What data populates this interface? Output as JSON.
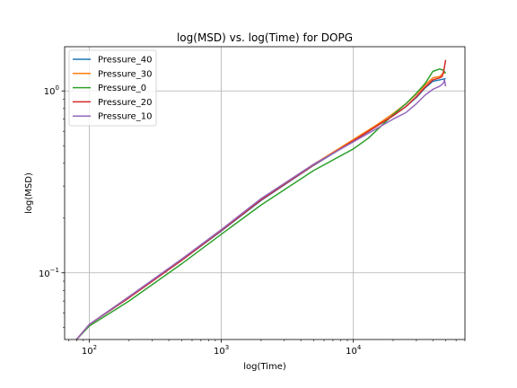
{
  "chart_data": {
    "type": "line",
    "title": "log(MSD) vs. log(Time) for DOPG",
    "xlabel": "log(Time)",
    "ylabel": "log(MSD)",
    "xscale": "log",
    "yscale": "log",
    "xlim": [
      65,
      70000
    ],
    "ylim": [
      0.043,
      1.75
    ],
    "xticks": [
      {
        "value": 100,
        "base": "10",
        "exp": "2"
      },
      {
        "value": 1000,
        "base": "10",
        "exp": "3"
      },
      {
        "value": 10000,
        "base": "10",
        "exp": "4"
      }
    ],
    "yticks": [
      {
        "value": 0.1,
        "base": "10",
        "exp": "−1"
      },
      {
        "value": 1,
        "base": "10",
        "exp": "0"
      }
    ],
    "grid": true,
    "legend_position": "upper-left",
    "series": [
      {
        "name": "Pressure_40",
        "color": "#1f77b4",
        "x": [
          80,
          100,
          200,
          500,
          1000,
          2000,
          5000,
          10000,
          15000,
          20000,
          25000,
          30000,
          35000,
          40000,
          45000,
          48000,
          50000
        ],
        "y": [
          0.043,
          0.052,
          0.073,
          0.117,
          0.17,
          0.25,
          0.39,
          0.53,
          0.64,
          0.73,
          0.82,
          0.92,
          1.04,
          1.13,
          1.15,
          1.16,
          1.17
        ]
      },
      {
        "name": "Pressure_30",
        "color": "#ff7f0e",
        "x": [
          80,
          100,
          200,
          500,
          1000,
          2000,
          5000,
          10000,
          15000,
          20000,
          25000,
          30000,
          35000,
          40000,
          45000,
          48000,
          50000
        ],
        "y": [
          0.043,
          0.052,
          0.074,
          0.118,
          0.172,
          0.255,
          0.395,
          0.54,
          0.65,
          0.75,
          0.85,
          0.96,
          1.08,
          1.18,
          1.2,
          1.25,
          1.26
        ]
      },
      {
        "name": "Pressure_0",
        "color": "#2ca02c",
        "x": [
          80,
          100,
          200,
          500,
          1000,
          2000,
          5000,
          10000,
          13000,
          20000,
          25000,
          30000,
          35000,
          40000,
          45000,
          48000,
          50000
        ],
        "y": [
          0.043,
          0.051,
          0.07,
          0.112,
          0.163,
          0.236,
          0.365,
          0.48,
          0.55,
          0.74,
          0.85,
          0.97,
          1.1,
          1.28,
          1.32,
          1.3,
          1.25
        ]
      },
      {
        "name": "Pressure_20",
        "color": "#d62728",
        "x": [
          80,
          100,
          200,
          500,
          1000,
          2000,
          5000,
          10000,
          15000,
          20000,
          25000,
          30000,
          35000,
          40000,
          45000,
          47000,
          48500,
          50000
        ],
        "y": [
          0.043,
          0.052,
          0.073,
          0.117,
          0.171,
          0.252,
          0.392,
          0.532,
          0.64,
          0.73,
          0.82,
          0.93,
          1.05,
          1.15,
          1.18,
          1.2,
          1.3,
          1.48
        ]
      },
      {
        "name": "Pressure_10",
        "color": "#9467bd",
        "x": [
          80,
          100,
          200,
          500,
          1000,
          2000,
          5000,
          10000,
          15000,
          20000,
          25000,
          30000,
          35000,
          40000,
          45000,
          48000,
          49000,
          50000
        ],
        "y": [
          0.043,
          0.052,
          0.074,
          0.119,
          0.173,
          0.256,
          0.395,
          0.525,
          0.62,
          0.7,
          0.76,
          0.85,
          0.95,
          1.02,
          1.06,
          1.1,
          1.15,
          1.06
        ]
      }
    ]
  }
}
